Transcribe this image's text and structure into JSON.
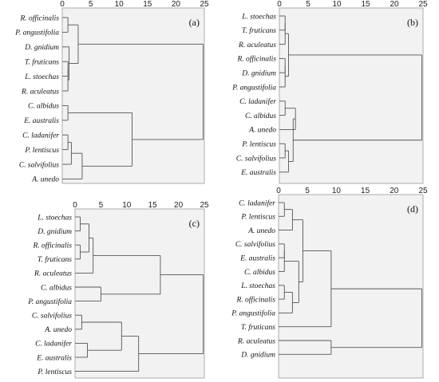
{
  "chart_data": [
    {
      "type": "dendrogram",
      "panel_label": "(a)",
      "xticks": [
        0,
        5,
        10,
        15,
        20,
        25
      ],
      "xlim": [
        0,
        25
      ],
      "leaves": [
        "R. officinalis",
        "P. angustifolia",
        "D. gnidium",
        "T. fruticans",
        "L. stoechas",
        "R. aculeatus",
        "C. albidus",
        "E. australis",
        "C. ladanifer",
        "P. lentiscus",
        "C. salvifolius",
        "A. unedo"
      ],
      "merges": [
        {
          "a": 0,
          "b": 1,
          "h": 1.0
        },
        {
          "a": 3,
          "b": 4,
          "h": 1.0
        },
        {
          "a": 13,
          "b": 5,
          "h": 1.0
        },
        {
          "a": 2,
          "b": 14,
          "h": 1.2
        },
        {
          "a": 12,
          "b": 15,
          "h": 2.8
        },
        {
          "a": 6,
          "b": 7,
          "h": 1.0
        },
        {
          "a": 8,
          "b": 9,
          "h": 1.0
        },
        {
          "a": 18,
          "b": 10,
          "h": 1.6
        },
        {
          "a": 19,
          "b": 11,
          "h": 3.5
        },
        {
          "a": 17,
          "b": 20,
          "h": 12.3
        },
        {
          "a": 16,
          "b": 21,
          "h": 24.8
        }
      ]
    },
    {
      "type": "dendrogram",
      "panel_label": "(b)",
      "xticks": [
        0,
        5,
        10,
        15,
        20,
        25
      ],
      "xlim": [
        0,
        25
      ],
      "leaves": [
        "L. stoechas",
        "T. fruticans",
        "R. aculeatus",
        "R. officinalis",
        "D. gnidium",
        "P. angustifolia",
        "C. ladanifer",
        "C. albidus",
        "A. unedo",
        "P. lentiscus",
        "C. salvifolius",
        "E. australis"
      ],
      "merges": [
        {
          "a": 0,
          "b": 1,
          "h": 1.0
        },
        {
          "a": 12,
          "b": 2,
          "h": 1.0
        },
        {
          "a": 3,
          "b": 4,
          "h": 1.0
        },
        {
          "a": 14,
          "b": 5,
          "h": 1.0
        },
        {
          "a": 13,
          "b": 15,
          "h": 1.6
        },
        {
          "a": 6,
          "b": 7,
          "h": 1.0
        },
        {
          "a": 9,
          "b": 10,
          "h": 1.0
        },
        {
          "a": 18,
          "b": 11,
          "h": 1.6
        },
        {
          "a": 17,
          "b": 8,
          "h": 2.8
        },
        {
          "a": 20,
          "b": 19,
          "h": 2.4
        },
        {
          "a": 16,
          "b": 21,
          "h": 24.8
        }
      ]
    },
    {
      "type": "dendrogram",
      "panel_label": "(c)",
      "xticks": [
        0,
        5,
        10,
        15,
        20,
        25
      ],
      "xlim": [
        0,
        25
      ],
      "leaves": [
        "L. stoechas",
        "D. gnidium",
        "R. officinalis",
        "T. fruticans",
        "R. aculeatus",
        "C. albidus",
        "P. angustifolia",
        "C. salvifolius",
        "A. unedo",
        "C. ladanifer",
        "E. australis",
        "P. lentiscus"
      ],
      "merges": [
        {
          "a": 0,
          "b": 1,
          "h": 1.0
        },
        {
          "a": 2,
          "b": 3,
          "h": 1.0
        },
        {
          "a": 12,
          "b": 13,
          "h": 2.7
        },
        {
          "a": 14,
          "b": 4,
          "h": 3.5
        },
        {
          "a": 5,
          "b": 6,
          "h": 5.0
        },
        {
          "a": 15,
          "b": 16,
          "h": 16.5
        },
        {
          "a": 7,
          "b": 8,
          "h": 1.3
        },
        {
          "a": 9,
          "b": 10,
          "h": 2.4
        },
        {
          "a": 18,
          "b": 19,
          "h": 9.0
        },
        {
          "a": 20,
          "b": 11,
          "h": 12.3
        },
        {
          "a": 17,
          "b": 21,
          "h": 24.8
        }
      ]
    },
    {
      "type": "dendrogram",
      "panel_label": "(d)",
      "xticks": [
        0,
        5,
        10,
        15,
        20,
        25
      ],
      "xlim": [
        0,
        25
      ],
      "leaves": [
        "C. ladanifer",
        "P. lentiscus",
        "A. unedo",
        "C. salvifolius",
        "E. australis",
        "C. albidus",
        "L. stoechas",
        "R. officinalis",
        "P. angustifolia",
        "T. fruticans",
        "R. aculeatus",
        "D. gnidium"
      ],
      "merges": [
        {
          "a": 0,
          "b": 1,
          "h": 1.0
        },
        {
          "a": 12,
          "b": 2,
          "h": 2.4
        },
        {
          "a": 3,
          "b": 4,
          "h": 1.0
        },
        {
          "a": 14,
          "b": 5,
          "h": 1.0
        },
        {
          "a": 6,
          "b": 7,
          "h": 1.0
        },
        {
          "a": 16,
          "b": 8,
          "h": 2.4
        },
        {
          "a": 15,
          "b": 17,
          "h": 3.5
        },
        {
          "a": 13,
          "b": 18,
          "h": 4.2
        },
        {
          "a": 19,
          "b": 9,
          "h": 9.1
        },
        {
          "a": 10,
          "b": 11,
          "h": 9.1
        },
        {
          "a": 20,
          "b": 21,
          "h": 24.8
        }
      ]
    }
  ]
}
